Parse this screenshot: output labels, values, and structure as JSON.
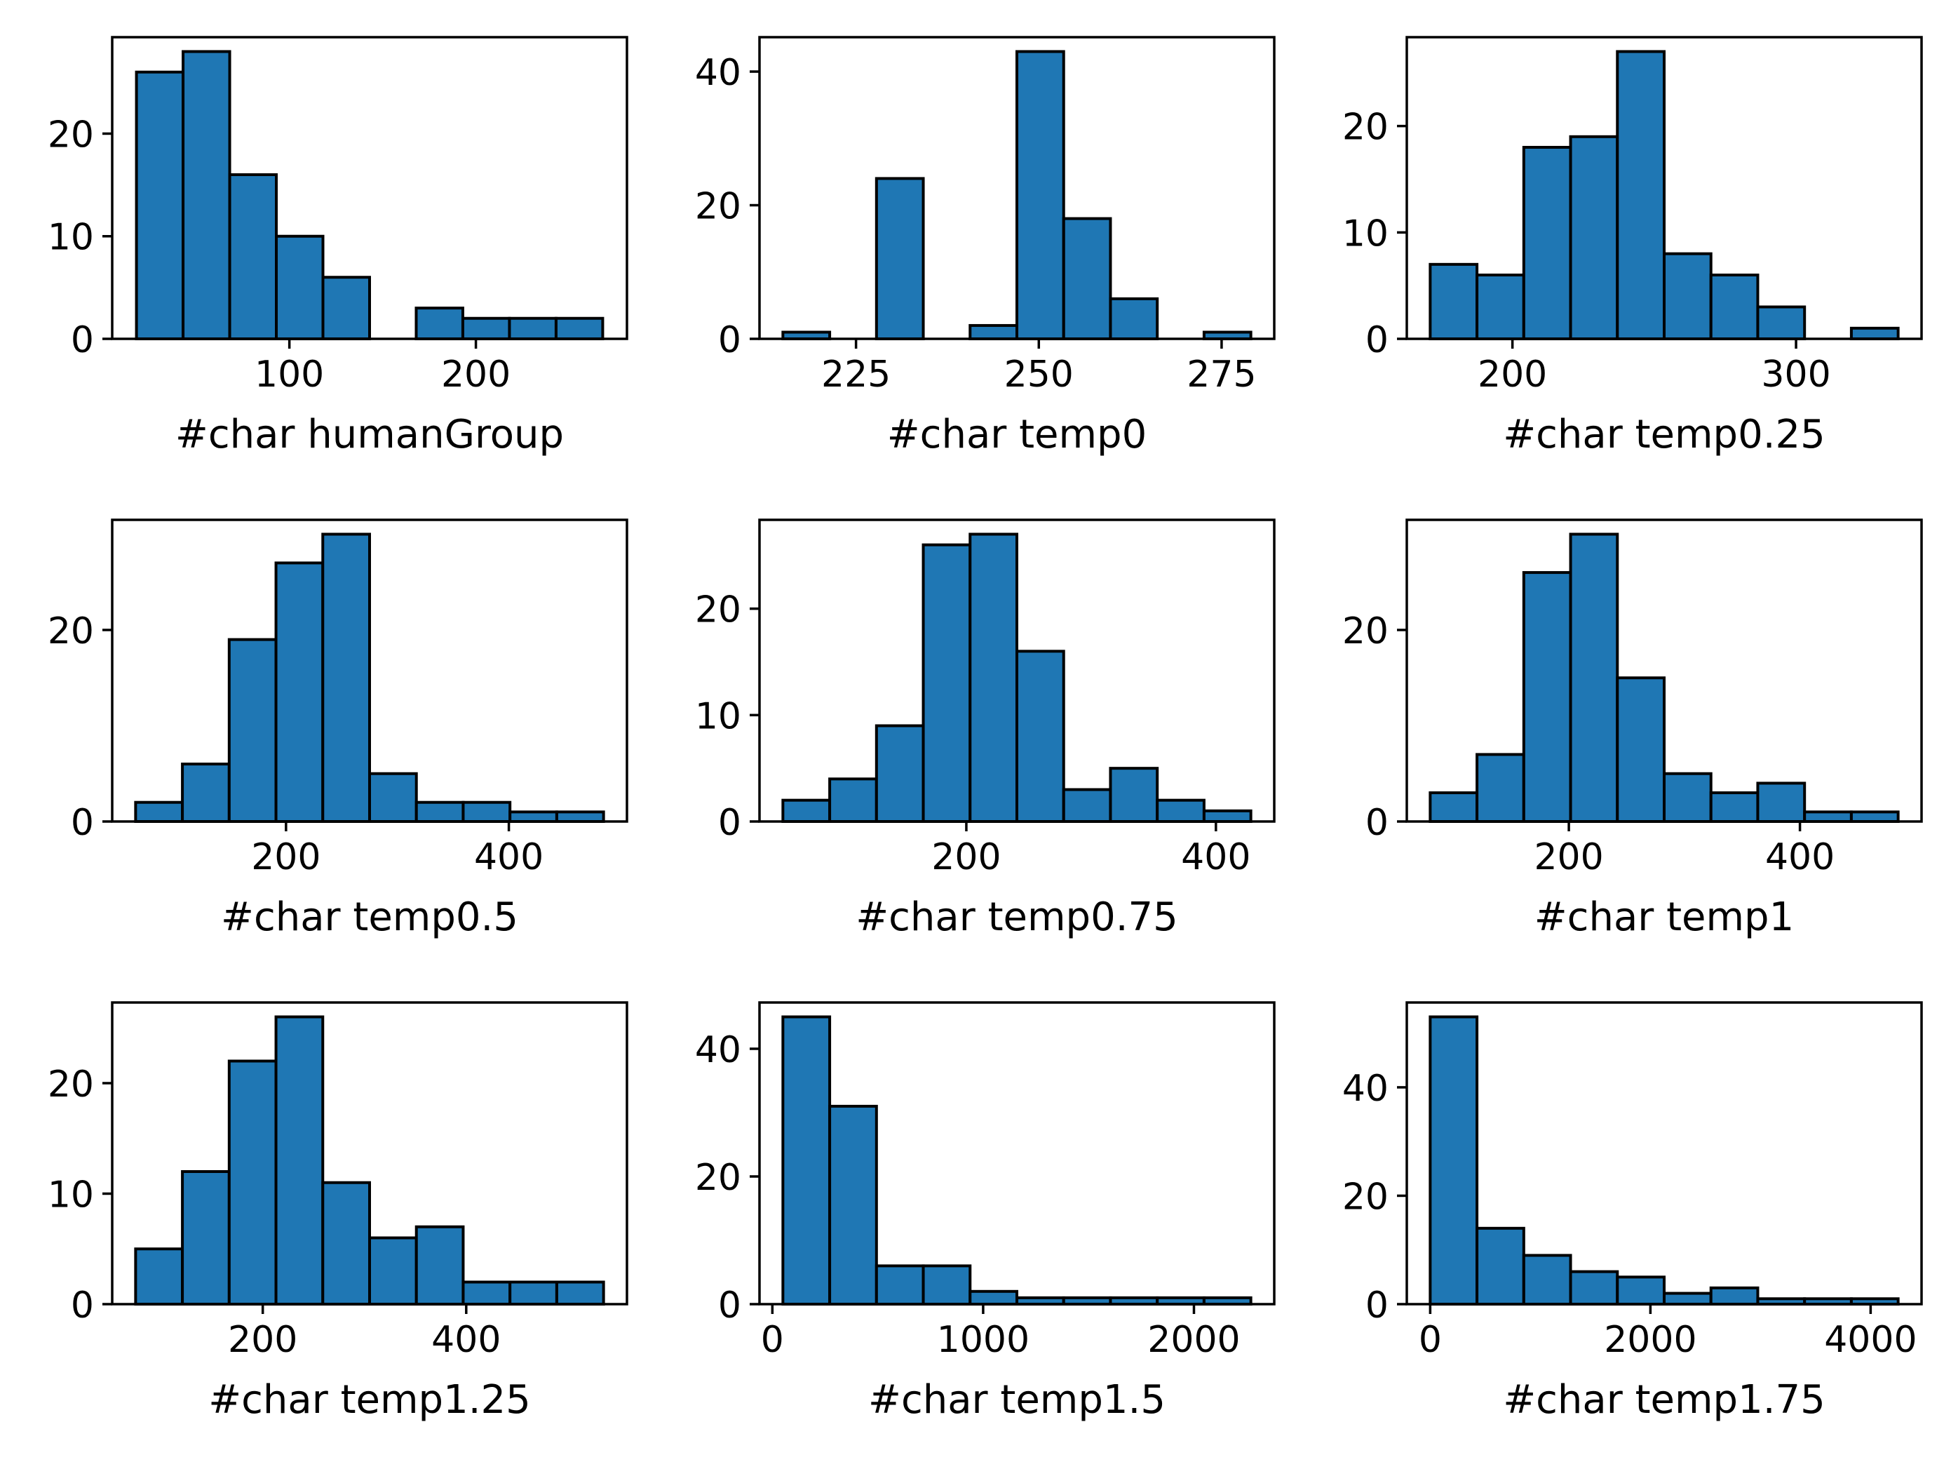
{
  "chart_data": [
    {
      "type": "bar",
      "xlabel": "#char humanGroup",
      "grid": false,
      "bin_edges": [
        18,
        43,
        68,
        93,
        118,
        143,
        168,
        193,
        218,
        243,
        268
      ],
      "counts": [
        26,
        28,
        16,
        10,
        6,
        0,
        3,
        2,
        2,
        2
      ],
      "xlim": [
        5,
        281
      ],
      "ylim": [
        0,
        29.4
      ],
      "xticks": [
        100,
        200
      ],
      "yticks": [
        0,
        10,
        20
      ]
    },
    {
      "type": "bar",
      "xlabel": "#char temp0",
      "grid": false,
      "bin_edges": [
        215,
        221.4,
        227.8,
        234.2,
        240.6,
        247,
        253.4,
        259.8,
        266.2,
        272.6,
        279
      ],
      "counts": [
        1,
        0,
        24,
        0,
        2,
        43,
        18,
        6,
        0,
        1
      ],
      "xlim": [
        211.8,
        282.2
      ],
      "ylim": [
        0,
        45.15
      ],
      "xticks": [
        225,
        250,
        275
      ],
      "yticks": [
        0,
        20,
        40
      ]
    },
    {
      "type": "bar",
      "xlabel": "#char temp0.25",
      "grid": false,
      "bin_edges": [
        171,
        187.5,
        204,
        220.5,
        237,
        253.5,
        270,
        286.5,
        303,
        319.5,
        336
      ],
      "counts": [
        7,
        6,
        18,
        19,
        27,
        8,
        6,
        3,
        0,
        1
      ],
      "xlim": [
        162.75,
        344.25
      ],
      "ylim": [
        0,
        28.35
      ],
      "xticks": [
        200,
        300
      ],
      "yticks": [
        0,
        10,
        20
      ]
    },
    {
      "type": "bar",
      "xlabel": "#char temp0.5",
      "grid": false,
      "bin_edges": [
        65,
        107,
        149,
        191,
        233,
        275,
        317,
        359,
        401,
        443,
        485
      ],
      "counts": [
        2,
        6,
        19,
        27,
        30,
        5,
        2,
        2,
        1,
        1
      ],
      "xlim": [
        44,
        506
      ],
      "ylim": [
        0,
        31.5
      ],
      "xticks": [
        200,
        400
      ],
      "yticks": [
        0,
        20
      ]
    },
    {
      "type": "bar",
      "xlabel": "#char temp0.75",
      "grid": false,
      "bin_edges": [
        53,
        90.5,
        128,
        165.5,
        203,
        240.5,
        278,
        315.5,
        353,
        390.5,
        428
      ],
      "counts": [
        2,
        4,
        9,
        26,
        27,
        16,
        3,
        5,
        2,
        1
      ],
      "xlim": [
        34.25,
        446.75
      ],
      "ylim": [
        0,
        28.35
      ],
      "xticks": [
        200,
        400
      ],
      "yticks": [
        0,
        10,
        20
      ]
    },
    {
      "type": "bar",
      "xlabel": "#char temp1",
      "grid": false,
      "bin_edges": [
        80,
        120.5,
        161,
        201.5,
        242,
        282.5,
        323,
        363.5,
        404,
        444.5,
        485
      ],
      "counts": [
        3,
        7,
        26,
        30,
        15,
        5,
        3,
        4,
        1,
        1
      ],
      "xlim": [
        59.75,
        505.25
      ],
      "ylim": [
        0,
        31.5
      ],
      "xticks": [
        200,
        400
      ],
      "yticks": [
        0,
        20
      ]
    },
    {
      "type": "bar",
      "xlabel": "#char temp1.25",
      "grid": false,
      "bin_edges": [
        75,
        121,
        167,
        213,
        259,
        305,
        351,
        397,
        443,
        489,
        535
      ],
      "counts": [
        5,
        12,
        22,
        26,
        11,
        6,
        7,
        2,
        2,
        2
      ],
      "xlim": [
        52,
        558
      ],
      "ylim": [
        0,
        27.3
      ],
      "xticks": [
        200,
        400
      ],
      "yticks": [
        0,
        10,
        20
      ]
    },
    {
      "type": "bar",
      "xlabel": "#char temp1.5",
      "grid": false,
      "bin_edges": [
        50,
        272,
        494,
        716,
        938,
        1160,
        1382,
        1604,
        1826,
        2048,
        2270
      ],
      "counts": [
        45,
        31,
        6,
        6,
        2,
        1,
        1,
        1,
        1,
        1
      ],
      "xlim": [
        -61,
        2381
      ],
      "ylim": [
        0,
        47.25
      ],
      "xticks": [
        0,
        1000,
        2000
      ],
      "yticks": [
        0,
        20,
        40
      ]
    },
    {
      "type": "bar",
      "xlabel": "#char temp1.75",
      "grid": false,
      "bin_edges": [
        0,
        425,
        850,
        1275,
        1700,
        2125,
        2550,
        2975,
        3400,
        3825,
        4250
      ],
      "counts": [
        53,
        14,
        9,
        6,
        5,
        2,
        3,
        1,
        1,
        1
      ],
      "xlim": [
        -212.5,
        4462.5
      ],
      "ylim": [
        0,
        55.65
      ],
      "xticks": [
        0,
        2000,
        4000
      ],
      "yticks": [
        0,
        20,
        40
      ]
    }
  ]
}
